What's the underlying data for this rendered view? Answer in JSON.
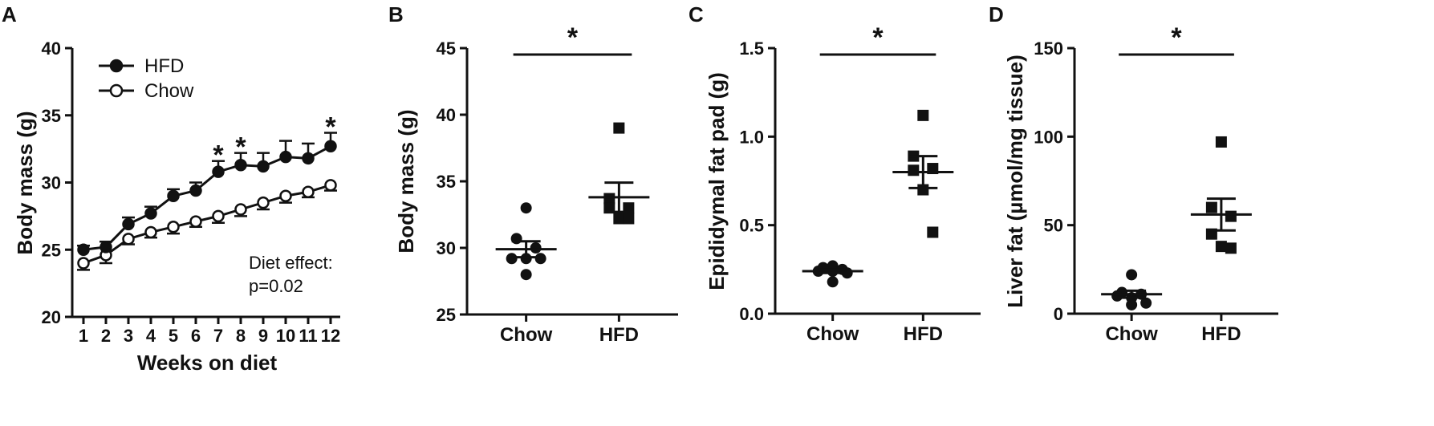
{
  "chart_data": [
    {
      "panel": "A",
      "type": "line",
      "xlabel": "Weeks on diet",
      "ylabel": "Body mass (g)",
      "ylim": [
        20,
        40
      ],
      "yticks": [
        20,
        25,
        30,
        35,
        40
      ],
      "x": [
        1,
        2,
        3,
        4,
        5,
        6,
        7,
        8,
        9,
        10,
        11,
        12
      ],
      "series": [
        {
          "name": "HFD",
          "marker": "filled-circle",
          "values": [
            25.0,
            25.2,
            26.9,
            27.7,
            29.0,
            29.4,
            30.8,
            31.3,
            31.2,
            31.9,
            31.8,
            32.7
          ],
          "sem": [
            0.3,
            0.4,
            0.5,
            0.5,
            0.5,
            0.6,
            0.8,
            0.9,
            1.0,
            1.2,
            1.1,
            1.0
          ]
        },
        {
          "name": "Chow",
          "marker": "open-circle",
          "values": [
            24.0,
            24.6,
            25.8,
            26.3,
            26.7,
            27.1,
            27.5,
            28.0,
            28.5,
            29.0,
            29.3,
            29.8
          ],
          "sem": [
            0.5,
            0.6,
            0.4,
            0.4,
            0.5,
            0.4,
            0.5,
            0.5,
            0.5,
            0.5,
            0.4,
            0.4
          ]
        }
      ],
      "significance_weeks": [
        7,
        8,
        12
      ],
      "significance_mark": "*",
      "legend_position": "top-left",
      "annotation_line1": "Diet effect:",
      "annotation_line2": "p=0.02"
    },
    {
      "panel": "B",
      "type": "scatter",
      "ylabel": "Body mass (g)",
      "ylim": [
        25,
        45
      ],
      "yticks": [
        25,
        30,
        35,
        40,
        45
      ],
      "categories": [
        "Chow",
        "HFD"
      ],
      "groups": [
        {
          "name": "Chow",
          "marker": "circle",
          "points": [
            33.0,
            30.7,
            30.0,
            29.2,
            29.2,
            29.2,
            28.0
          ],
          "mean": 29.9,
          "sem": 0.6
        },
        {
          "name": "HFD",
          "marker": "square",
          "points": [
            39.0,
            33.7,
            33.0,
            33.0,
            32.2,
            32.2
          ],
          "mean": 33.8,
          "sem": 1.1
        }
      ],
      "significance_mark": "*"
    },
    {
      "panel": "C",
      "type": "scatter",
      "ylabel": "Epididymal fat pad (g)",
      "ylim": [
        0.0,
        1.5
      ],
      "yticks": [
        "0.0",
        "0.5",
        "1.0",
        "1.5"
      ],
      "categories": [
        "Chow",
        "HFD"
      ],
      "groups": [
        {
          "name": "Chow",
          "marker": "circle",
          "points": [
            0.27,
            0.26,
            0.25,
            0.24,
            0.24,
            0.23,
            0.18
          ],
          "mean": 0.24,
          "sem": 0.01
        },
        {
          "name": "HFD",
          "marker": "square",
          "points": [
            1.12,
            0.89,
            0.82,
            0.81,
            0.7,
            0.46
          ],
          "mean": 0.8,
          "sem": 0.09
        }
      ],
      "significance_mark": "*"
    },
    {
      "panel": "D",
      "type": "scatter",
      "ylabel": "Liver fat (µmol/mg tissue)",
      "ylim": [
        0,
        150
      ],
      "yticks": [
        0,
        50,
        100,
        150
      ],
      "categories": [
        "Chow",
        "HFD"
      ],
      "groups": [
        {
          "name": "Chow",
          "marker": "circle",
          "points": [
            22,
            12,
            11,
            10,
            9,
            6,
            5
          ],
          "mean": 11,
          "sem": 2
        },
        {
          "name": "HFD",
          "marker": "square",
          "points": [
            97,
            60,
            55,
            45,
            38,
            37
          ],
          "mean": 56,
          "sem": 9
        }
      ],
      "significance_mark": "*"
    }
  ]
}
